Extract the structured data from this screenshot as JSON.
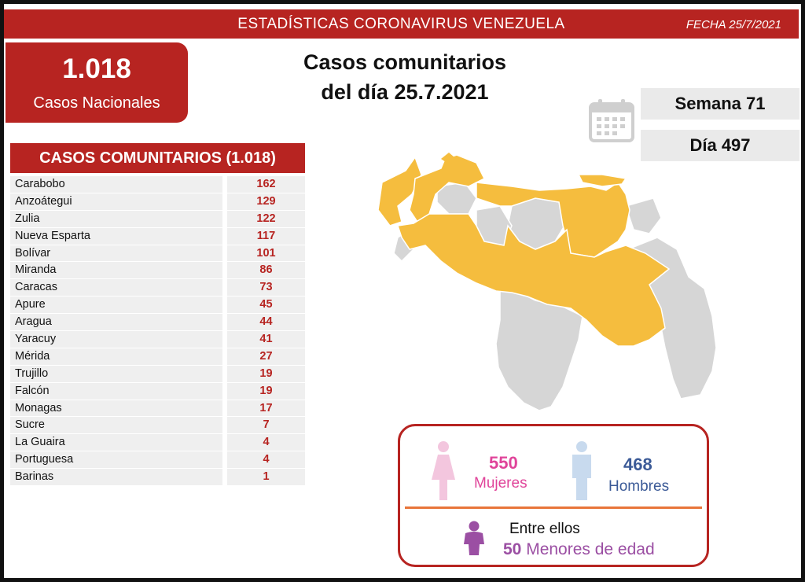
{
  "header": {
    "title": "ESTADÍSTICAS CORONAVIRUS VENEZUELA",
    "date": "FECHA 25/7/2021"
  },
  "national": {
    "count": "1.018",
    "label": "Casos Nacionales"
  },
  "headline": {
    "line1": "Casos comunitarios",
    "line2": "del día 25.7.2021"
  },
  "week": "Semana 71",
  "day": "Día 497",
  "table": {
    "title": "CASOS COMUNITARIOS (1.018)",
    "rows": [
      {
        "state": "Carabobo",
        "cases": "162"
      },
      {
        "state": "Anzoátegui",
        "cases": "129"
      },
      {
        "state": "Zulia",
        "cases": "122"
      },
      {
        "state": "Nueva Esparta",
        "cases": "117"
      },
      {
        "state": "Bolívar",
        "cases": "101"
      },
      {
        "state": "Miranda",
        "cases": "86"
      },
      {
        "state": "Caracas",
        "cases": "73"
      },
      {
        "state": "Apure",
        "cases": "45"
      },
      {
        "state": "Aragua",
        "cases": "44"
      },
      {
        "state": "Yaracuy",
        "cases": "41"
      },
      {
        "state": "Mérida",
        "cases": "27"
      },
      {
        "state": "Trujillo",
        "cases": "19"
      },
      {
        "state": "Falcón",
        "cases": "19"
      },
      {
        "state": "Monagas",
        "cases": "17"
      },
      {
        "state": "Sucre",
        "cases": "7"
      },
      {
        "state": "La Guaira",
        "cases": "4"
      },
      {
        "state": "Portuguesa",
        "cases": "4"
      },
      {
        "state": "Barinas",
        "cases": "1"
      }
    ]
  },
  "gender": {
    "women_count": "550",
    "women_label": "Mujeres",
    "men_count": "468",
    "men_label": "Hombres",
    "minors_intro": "Entre ellos",
    "minors_count": "50",
    "minors_label": "Menores de edad"
  },
  "icons": [
    "calendar-icon",
    "female-figure-icon",
    "male-figure-icon",
    "child-figure-icon"
  ],
  "colors": {
    "brand_red": "#b72421",
    "map_highlight": "#f5bd3e",
    "map_other": "#d6d6d6",
    "women": "#e0449a",
    "men": "#3b5a97",
    "minors": "#9b4fa3"
  }
}
